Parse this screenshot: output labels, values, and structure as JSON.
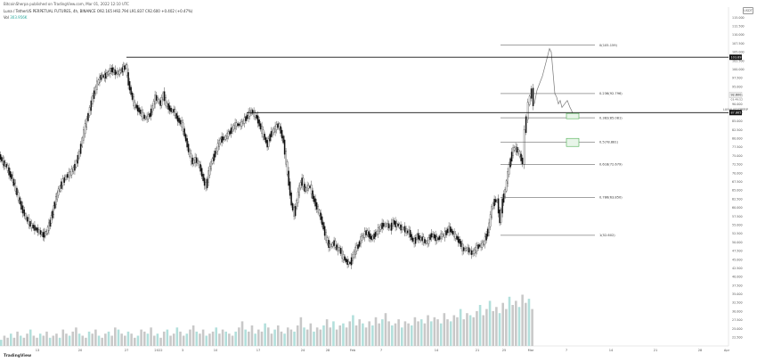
{
  "header": {
    "publisher": "BitcoinSherpa published on TradingView.com, Mar 01, 2022 12:10 UTC",
    "symbol": "Luna / TetherUS PERPETUAL FUTURES, 4h, BINANCE O92.165 H92.794 L91.837 C92.600 +0.402 (+0.47%)",
    "volume_label": "Vol",
    "volume_value": "303.956K"
  },
  "logo_text": "TradingView",
  "settings_label": "USDT",
  "time_label": "LUNAUSDTPERP",
  "chart_data": {
    "type": "candlestick",
    "ylim": [
      20,
      118
    ],
    "price_ticks": [
      115,
      112.5,
      110,
      107.5,
      105,
      102.5,
      100,
      97.5,
      95,
      92.5,
      90,
      87.5,
      85,
      82.5,
      80,
      77.5,
      75,
      72.5,
      70,
      67.5,
      65,
      62.5,
      60,
      57.5,
      55,
      52.5,
      50,
      47.5,
      45,
      42.5,
      40,
      37.5,
      35,
      32.5,
      30,
      27.5,
      25,
      22.5
    ],
    "time_labels": [
      "13",
      "20",
      "27",
      "2022",
      "3",
      "10",
      "17",
      "24",
      "28",
      "Feb",
      "7",
      "14",
      "21",
      "25",
      "Mar",
      "7",
      "14",
      "21",
      "28",
      "Apr"
    ],
    "price_path": [
      [
        0,
        75
      ],
      [
        4,
        73
      ],
      [
        8,
        72
      ],
      [
        11,
        70
      ],
      [
        15,
        68
      ],
      [
        20,
        64
      ],
      [
        25,
        60
      ],
      [
        30,
        57
      ],
      [
        35,
        55
      ],
      [
        40,
        54
      ],
      [
        45,
        53
      ],
      [
        49,
        52
      ],
      [
        53,
        53
      ],
      [
        57,
        56
      ],
      [
        61,
        60
      ],
      [
        65,
        64
      ],
      [
        70,
        67
      ],
      [
        75,
        69
      ],
      [
        80,
        70
      ],
      [
        85,
        72
      ],
      [
        90,
        76
      ],
      [
        95,
        82
      ],
      [
        100,
        87
      ],
      [
        105,
        92
      ],
      [
        110,
        96
      ],
      [
        114,
        98
      ],
      [
        118,
        98
      ],
      [
        122,
        99
      ],
      [
        126,
        100
      ],
      [
        130,
        99
      ],
      [
        134,
        99
      ],
      [
        138,
        100
      ],
      [
        142,
        101
      ],
      [
        145,
        96
      ],
      [
        148,
        93
      ],
      [
        151,
        90
      ],
      [
        154,
        89
      ],
      [
        157,
        88
      ],
      [
        160,
        87
      ],
      [
        163,
        86
      ],
      [
        166,
        86
      ],
      [
        169,
        87
      ],
      [
        172,
        89
      ],
      [
        175,
        92
      ],
      [
        178,
        91
      ],
      [
        181,
        90
      ],
      [
        184,
        93
      ],
      [
        187,
        90
      ],
      [
        190,
        89
      ],
      [
        193,
        88
      ],
      [
        196,
        88
      ],
      [
        199,
        86
      ],
      [
        202,
        85
      ],
      [
        205,
        84
      ],
      [
        208,
        81
      ],
      [
        211,
        78
      ],
      [
        214,
        75
      ],
      [
        217,
        73
      ],
      [
        220,
        74
      ],
      [
        223,
        73
      ],
      [
        226,
        71
      ],
      [
        229,
        68
      ],
      [
        232,
        66
      ],
      [
        235,
        70
      ],
      [
        238,
        73
      ],
      [
        241,
        75
      ],
      [
        244,
        77
      ],
      [
        247,
        79
      ],
      [
        250,
        80
      ],
      [
        253,
        80
      ],
      [
        256,
        81
      ],
      [
        259,
        82
      ],
      [
        262,
        83
      ],
      [
        265,
        84
      ],
      [
        268,
        84
      ],
      [
        271,
        84
      ],
      [
        274,
        85
      ],
      [
        277,
        86
      ],
      [
        280,
        87
      ],
      [
        283,
        88
      ],
      [
        286,
        87
      ],
      [
        289,
        86
      ],
      [
        292,
        84
      ],
      [
        295,
        82
      ],
      [
        298,
        80
      ],
      [
        301,
        78
      ],
      [
        304,
        81
      ],
      [
        307,
        82
      ],
      [
        310,
        83
      ],
      [
        313,
        84
      ],
      [
        316,
        82
      ],
      [
        319,
        79
      ],
      [
        322,
        73
      ],
      [
        325,
        67
      ],
      [
        328,
        61
      ],
      [
        331,
        58
      ],
      [
        334,
        62
      ],
      [
        337,
        66
      ],
      [
        340,
        68
      ],
      [
        343,
        65
      ],
      [
        346,
        66
      ],
      [
        349,
        66
      ],
      [
        352,
        63
      ],
      [
        355,
        61
      ],
      [
        358,
        59
      ],
      [
        361,
        57
      ],
      [
        364,
        54
      ],
      [
        367,
        51
      ],
      [
        370,
        49
      ],
      [
        373,
        49
      ],
      [
        376,
        50
      ],
      [
        379,
        48
      ],
      [
        382,
        48
      ],
      [
        385,
        46
      ],
      [
        388,
        45
      ],
      [
        391,
        44
      ],
      [
        394,
        44
      ],
      [
        397,
        46
      ],
      [
        400,
        48
      ],
      [
        403,
        49
      ],
      [
        406,
        51
      ],
      [
        409,
        52
      ],
      [
        412,
        53
      ],
      [
        415,
        52
      ],
      [
        418,
        51
      ],
      [
        421,
        52
      ],
      [
        424,
        53
      ],
      [
        427,
        54
      ],
      [
        430,
        55
      ],
      [
        433,
        55
      ],
      [
        436,
        55
      ],
      [
        439,
        54
      ],
      [
        442,
        56
      ],
      [
        445,
        55
      ],
      [
        448,
        55
      ],
      [
        451,
        54
      ],
      [
        454,
        54
      ],
      [
        457,
        53
      ],
      [
        460,
        53
      ],
      [
        463,
        51
      ],
      [
        466,
        50
      ],
      [
        469,
        52
      ],
      [
        472,
        51
      ],
      [
        475,
        51
      ],
      [
        478,
        50
      ],
      [
        481,
        50
      ],
      [
        484,
        52
      ],
      [
        487,
        52
      ],
      [
        490,
        51
      ],
      [
        493,
        51
      ],
      [
        496,
        52
      ],
      [
        499,
        52
      ],
      [
        502,
        53
      ],
      [
        505,
        54
      ],
      [
        508,
        53
      ],
      [
        511,
        52
      ],
      [
        514,
        51
      ],
      [
        517,
        50
      ],
      [
        520,
        48
      ],
      [
        523,
        48
      ],
      [
        526,
        48
      ],
      [
        529,
        47
      ],
      [
        532,
        47
      ],
      [
        535,
        48
      ],
      [
        538,
        49
      ],
      [
        541,
        49
      ],
      [
        544,
        50
      ],
      [
        547,
        52
      ],
      [
        550,
        55
      ],
      [
        553,
        60
      ],
      [
        556,
        62
      ],
      [
        559,
        62
      ],
      [
        562,
        56
      ],
      [
        565,
        62
      ],
      [
        568,
        65
      ],
      [
        571,
        70
      ],
      [
        574,
        74
      ],
      [
        577,
        77
      ],
      [
        580,
        77
      ],
      [
        583,
        76
      ],
      [
        586,
        74
      ],
      [
        588,
        73
      ],
      [
        590,
        82
      ],
      [
        592,
        86
      ],
      [
        594,
        90
      ],
      [
        596,
        92
      ],
      [
        598,
        94
      ],
      [
        600,
        90
      ]
    ],
    "forecast_path": [
      [
        600,
        90
      ],
      [
        603,
        94
      ],
      [
        606,
        96
      ],
      [
        609,
        98
      ],
      [
        612,
        101
      ],
      [
        615,
        104
      ],
      [
        617,
        106
      ],
      [
        619,
        105
      ],
      [
        621,
        99
      ],
      [
        623,
        93
      ],
      [
        625,
        92
      ],
      [
        627,
        90
      ],
      [
        629,
        91
      ],
      [
        631,
        89
      ],
      [
        634,
        90
      ],
      [
        637,
        91
      ],
      [
        640,
        89
      ],
      [
        642,
        88
      ],
      [
        644,
        86
      ]
    ],
    "horizontal_levels": [
      {
        "label": "103.697",
        "value": 103.5
      },
      {
        "label": "87.865",
        "value": 87.5
      }
    ],
    "fib_levels": [
      {
        "label": "0(105.159)",
        "value": 107
      },
      {
        "label": "0.236(92.796)",
        "value": 93
      },
      {
        "label": "0.382(85.081)",
        "value": 86
      },
      {
        "label": "0.5(78.881)",
        "value": 79
      },
      {
        "label": "0.618(72.679)",
        "value": 72.5
      },
      {
        "label": "0.786(63.850)",
        "value": 63
      },
      {
        "label": "1(52.602)",
        "value": 52
      }
    ],
    "current_price_label": "92.600",
    "current_price_value": 92.6,
    "time_remaining": "03:49:52",
    "volume_profile": [
      3,
      5,
      4,
      6,
      4,
      7,
      5,
      4,
      6,
      8,
      5,
      4,
      6,
      5,
      7,
      4,
      5,
      6,
      4,
      8,
      6,
      5,
      7,
      9,
      6,
      5,
      4,
      7,
      6,
      8,
      5,
      4,
      6,
      7,
      5,
      9,
      8,
      6,
      5,
      7,
      6,
      4,
      5,
      8,
      7,
      6,
      9,
      5,
      6,
      4,
      7,
      8,
      5,
      6,
      9,
      7,
      5,
      6,
      8,
      10,
      7,
      6,
      8,
      5,
      6,
      7,
      9,
      6,
      8,
      7,
      6,
      5,
      7,
      9,
      12,
      8,
      7,
      10,
      6,
      8,
      7,
      11,
      9,
      6,
      8,
      10,
      7,
      6,
      9,
      8,
      7,
      10,
      14,
      9,
      8,
      11,
      7,
      9,
      8,
      10,
      13,
      9,
      12,
      8,
      10,
      11,
      9,
      12,
      15,
      10,
      13,
      11,
      9,
      12,
      10,
      14,
      11,
      13,
      16,
      12,
      10,
      11,
      13,
      9,
      12,
      11,
      10,
      14,
      12,
      13,
      11,
      15,
      12,
      14,
      13,
      11,
      16,
      13,
      12,
      15,
      14,
      18,
      13,
      16,
      15,
      14,
      17,
      20,
      15,
      18,
      22,
      17,
      19,
      16,
      21,
      18,
      24,
      20,
      22,
      19,
      25,
      21,
      23,
      18
    ]
  }
}
